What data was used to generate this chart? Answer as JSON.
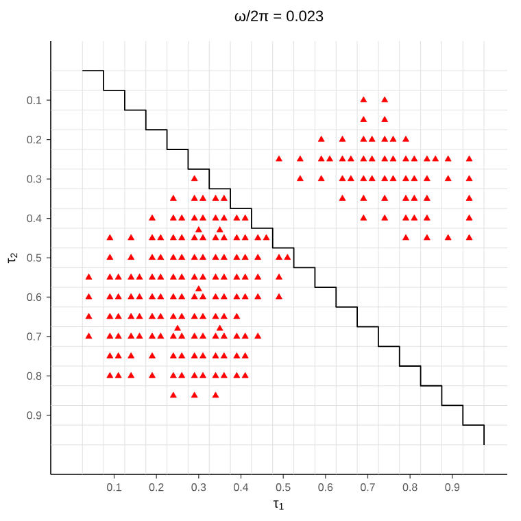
{
  "chart_data": {
    "type": "scatter",
    "title": "ω/2π = 0.023",
    "xlabel": "τ$_{1}$",
    "ylabel": "τ$_{2}$",
    "xlim": [
      -0.05,
      1.03
    ],
    "ylim": [
      1.05,
      -0.05
    ],
    "xticks": [
      0.1,
      0.2,
      0.3,
      0.4,
      0.5,
      0.6,
      0.7,
      0.8,
      0.9,
      {
        "value": 0.025,
        "label": null
      },
      {
        "value": 0.075,
        "label": null
      },
      {
        "value": 0.125,
        "label": null
      },
      {
        "value": 0.175,
        "label": null
      },
      {
        "value": 0.225,
        "label": null
      },
      {
        "value": 0.275,
        "label": null
      },
      {
        "value": 0.325,
        "label": null
      },
      {
        "value": 0.375,
        "label": null
      },
      {
        "value": 0.425,
        "label": null
      },
      {
        "value": 0.475,
        "label": null
      },
      {
        "value": 0.525,
        "label": null
      },
      {
        "value": 0.575,
        "label": null
      },
      {
        "value": 0.625,
        "label": null
      },
      {
        "value": 0.675,
        "label": null
      },
      {
        "value": 0.725,
        "label": null
      },
      {
        "value": 0.775,
        "label": null
      },
      {
        "value": 0.825,
        "label": null
      },
      {
        "value": 0.875,
        "label": null
      },
      {
        "value": 0.925,
        "label": null
      },
      {
        "value": 0.975,
        "label": null
      }
    ],
    "yticks": [
      0.1,
      0.2,
      0.3,
      0.4,
      0.5,
      0.6,
      0.7,
      0.8,
      0.9,
      {
        "value": 0.025,
        "label": null
      },
      {
        "value": 0.075,
        "label": null
      },
      {
        "value": 0.125,
        "label": null
      },
      {
        "value": 0.175,
        "label": null
      },
      {
        "value": 0.225,
        "label": null
      },
      {
        "value": 0.275,
        "label": null
      },
      {
        "value": 0.325,
        "label": null
      },
      {
        "value": 0.375,
        "label": null
      },
      {
        "value": 0.425,
        "label": null
      },
      {
        "value": 0.475,
        "label": null
      },
      {
        "value": 0.525,
        "label": null
      },
      {
        "value": 0.575,
        "label": null
      },
      {
        "value": 0.625,
        "label": null
      },
      {
        "value": 0.675,
        "label": null
      },
      {
        "value": 0.725,
        "label": null
      },
      {
        "value": 0.775,
        "label": null
      },
      {
        "value": 0.825,
        "label": null
      },
      {
        "value": 0.875,
        "label": null
      },
      {
        "value": 0.925,
        "label": null
      },
      {
        "value": 0.975,
        "label": null
      }
    ],
    "grid": true,
    "marker": "triangle",
    "series": [
      {
        "color": "#ff0000",
        "x": [
          0.69,
          0.74,
          0.69,
          0.74,
          0.59,
          0.64,
          0.69,
          0.71,
          0.74,
          0.76,
          0.79,
          0.49,
          0.54,
          0.59,
          0.61,
          0.64,
          0.66,
          0.69,
          0.71,
          0.74,
          0.76,
          0.79,
          0.81,
          0.84,
          0.86,
          0.89,
          0.94,
          0.29,
          0.54,
          0.59,
          0.64,
          0.66,
          0.69,
          0.71,
          0.74,
          0.76,
          0.79,
          0.81,
          0.84,
          0.89,
          0.94,
          0.24,
          0.29,
          0.31,
          0.34,
          0.36,
          0.64,
          0.69,
          0.74,
          0.79,
          0.81,
          0.84,
          0.94,
          0.19,
          0.24,
          0.26,
          0.29,
          0.31,
          0.34,
          0.36,
          0.39,
          0.41,
          0.69,
          0.74,
          0.79,
          0.81,
          0.84,
          0.94,
          0.3,
          0.35,
          0.09,
          0.14,
          0.19,
          0.21,
          0.24,
          0.26,
          0.29,
          0.31,
          0.34,
          0.36,
          0.39,
          0.41,
          0.44,
          0.46,
          0.79,
          0.84,
          0.89,
          0.94,
          0.09,
          0.14,
          0.19,
          0.21,
          0.24,
          0.26,
          0.29,
          0.31,
          0.34,
          0.36,
          0.39,
          0.41,
          0.44,
          0.49,
          0.51,
          0.04,
          0.09,
          0.11,
          0.14,
          0.16,
          0.19,
          0.21,
          0.24,
          0.26,
          0.29,
          0.31,
          0.34,
          0.36,
          0.39,
          0.41,
          0.44,
          0.49,
          0.3,
          0.04,
          0.09,
          0.11,
          0.14,
          0.16,
          0.19,
          0.21,
          0.24,
          0.26,
          0.29,
          0.31,
          0.34,
          0.36,
          0.39,
          0.41,
          0.44,
          0.49,
          0.04,
          0.09,
          0.11,
          0.14,
          0.16,
          0.19,
          0.21,
          0.24,
          0.26,
          0.29,
          0.31,
          0.34,
          0.36,
          0.39,
          0.25,
          0.35,
          0.04,
          0.09,
          0.11,
          0.14,
          0.16,
          0.19,
          0.21,
          0.24,
          0.26,
          0.29,
          0.31,
          0.34,
          0.36,
          0.39,
          0.41,
          0.44,
          0.09,
          0.11,
          0.14,
          0.19,
          0.24,
          0.26,
          0.29,
          0.31,
          0.34,
          0.36,
          0.39,
          0.41,
          0.09,
          0.11,
          0.14,
          0.19,
          0.24,
          0.26,
          0.29,
          0.31,
          0.34,
          0.36,
          0.39,
          0.41,
          0.24,
          0.29,
          0.34
        ],
        "values": [
          0.1,
          0.1,
          0.15,
          0.15,
          0.2,
          0.2,
          0.2,
          0.2,
          0.2,
          0.2,
          0.2,
          0.25,
          0.25,
          0.25,
          0.25,
          0.25,
          0.25,
          0.25,
          0.25,
          0.25,
          0.25,
          0.25,
          0.25,
          0.25,
          0.25,
          0.25,
          0.25,
          0.3,
          0.3,
          0.3,
          0.3,
          0.3,
          0.3,
          0.3,
          0.3,
          0.3,
          0.3,
          0.3,
          0.3,
          0.3,
          0.3,
          0.35,
          0.35,
          0.35,
          0.35,
          0.35,
          0.35,
          0.35,
          0.35,
          0.35,
          0.35,
          0.35,
          0.35,
          0.4,
          0.4,
          0.4,
          0.4,
          0.4,
          0.4,
          0.4,
          0.4,
          0.4,
          0.4,
          0.4,
          0.4,
          0.4,
          0.4,
          0.4,
          0.43,
          0.43,
          0.45,
          0.45,
          0.45,
          0.45,
          0.45,
          0.45,
          0.45,
          0.45,
          0.45,
          0.45,
          0.45,
          0.45,
          0.45,
          0.45,
          0.45,
          0.45,
          0.45,
          0.45,
          0.5,
          0.5,
          0.5,
          0.5,
          0.5,
          0.5,
          0.5,
          0.5,
          0.5,
          0.5,
          0.5,
          0.5,
          0.5,
          0.5,
          0.5,
          0.55,
          0.55,
          0.55,
          0.55,
          0.55,
          0.55,
          0.55,
          0.55,
          0.55,
          0.55,
          0.55,
          0.55,
          0.55,
          0.55,
          0.55,
          0.55,
          0.55,
          0.58,
          0.6,
          0.6,
          0.6,
          0.6,
          0.6,
          0.6,
          0.6,
          0.6,
          0.6,
          0.6,
          0.6,
          0.6,
          0.6,
          0.6,
          0.6,
          0.6,
          0.6,
          0.65,
          0.65,
          0.65,
          0.65,
          0.65,
          0.65,
          0.65,
          0.65,
          0.65,
          0.65,
          0.65,
          0.65,
          0.65,
          0.65,
          0.68,
          0.68,
          0.7,
          0.7,
          0.7,
          0.7,
          0.7,
          0.7,
          0.7,
          0.7,
          0.7,
          0.7,
          0.7,
          0.7,
          0.7,
          0.7,
          0.7,
          0.7,
          0.75,
          0.75,
          0.75,
          0.75,
          0.75,
          0.75,
          0.75,
          0.75,
          0.75,
          0.75,
          0.75,
          0.75,
          0.8,
          0.8,
          0.8,
          0.8,
          0.8,
          0.8,
          0.8,
          0.8,
          0.8,
          0.8,
          0.8,
          0.8,
          0.85,
          0.85,
          0.85
        ]
      },
      {
        "type": "step",
        "color": "#000000",
        "marker": "none",
        "x": [
          0.025,
          0.075,
          0.125,
          0.175,
          0.225,
          0.275,
          0.325,
          0.375,
          0.425,
          0.475,
          0.525,
          0.575,
          0.625,
          0.675,
          0.725,
          0.775,
          0.825,
          0.875,
          0.925,
          0.975
        ],
        "values": [
          0.025,
          0.075,
          0.125,
          0.175,
          0.225,
          0.275,
          0.325,
          0.375,
          0.425,
          0.475,
          0.525,
          0.575,
          0.625,
          0.675,
          0.725,
          0.775,
          0.825,
          0.875,
          0.925,
          0.975
        ]
      }
    ]
  }
}
